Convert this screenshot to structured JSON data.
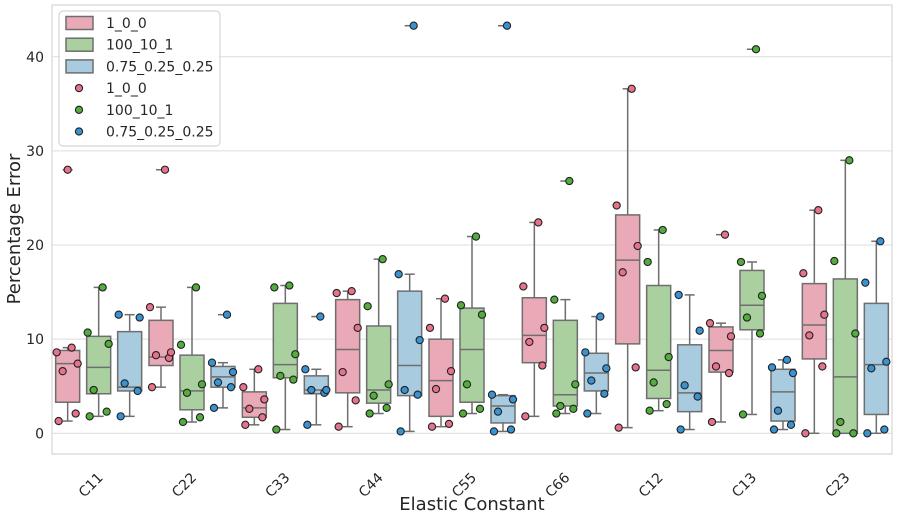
{
  "chart_data": {
    "type": "box",
    "title": "",
    "xlabel": "Elastic Constant",
    "ylabel": "Percentage Error",
    "ylim": [
      -2.2,
      45.5
    ],
    "yticks": [
      0,
      10,
      20,
      30,
      40
    ],
    "grid": true,
    "legend_position": "top-left",
    "categories": [
      "C11",
      "C22",
      "C33",
      "C44",
      "C55",
      "C66",
      "C12",
      "C13",
      "C23"
    ],
    "colors": {
      "1_0_0": {
        "box": "#eaa9b6",
        "point": "#e7728c"
      },
      "100_10_1": {
        "box": "#aad0a0",
        "point": "#52ad3c"
      },
      "0.75_0.25_0.25": {
        "box": "#a8cbe0",
        "point": "#3893d3"
      }
    },
    "legend": {
      "box_entries": [
        "1_0_0",
        "100_10_1",
        "0.75_0.25_0.25"
      ],
      "point_entries": [
        "1_0_0",
        "100_10_1",
        "0.75_0.25_0.25"
      ]
    },
    "series": [
      {
        "name": "1_0_0",
        "boxes": [
          {
            "whislo": 1.3,
            "q1": 3.3,
            "med": 7.4,
            "q3": 8.8,
            "whishi": 9.1,
            "fliers": [
              28.0
            ],
            "points": [
              1.3,
              2.1,
              6.6,
              7.4,
              8.6,
              9.1,
              28.0
            ]
          },
          {
            "whislo": 4.9,
            "q1": 7.2,
            "med": 8.1,
            "q3": 12.0,
            "whishi": 13.4,
            "fliers": [
              28.0
            ],
            "points": [
              4.9,
              8.0,
              8.3,
              8.6,
              13.4,
              28.0
            ]
          },
          {
            "whislo": 0.9,
            "q1": 1.7,
            "med": 2.7,
            "q3": 4.4,
            "whishi": 6.8,
            "fliers": [],
            "points": [
              0.9,
              1.7,
              2.6,
              3.6,
              4.9,
              6.8
            ]
          },
          {
            "whislo": 0.7,
            "q1": 4.3,
            "med": 8.9,
            "q3": 14.2,
            "whishi": 15.1,
            "fliers": [],
            "points": [
              0.7,
              3.5,
              6.5,
              11.2,
              14.9,
              15.1
            ]
          },
          {
            "whislo": 0.7,
            "q1": 1.8,
            "med": 5.6,
            "q3": 10.0,
            "whishi": 14.3,
            "fliers": [],
            "points": [
              0.7,
              1.0,
              4.7,
              6.6,
              11.2,
              14.3
            ]
          },
          {
            "whislo": 1.8,
            "q1": 7.5,
            "med": 10.4,
            "q3": 14.4,
            "whishi": 22.4,
            "fliers": [],
            "points": [
              1.8,
              7.2,
              9.7,
              11.2,
              15.6,
              22.4
            ]
          },
          {
            "whislo": 0.6,
            "q1": 9.5,
            "med": 18.4,
            "q3": 23.2,
            "whishi": 36.6,
            "fliers": [],
            "points": [
              0.6,
              7.0,
              17.1,
              19.9,
              24.2,
              36.6
            ]
          },
          {
            "whislo": 1.2,
            "q1": 6.5,
            "med": 8.8,
            "q3": 11.3,
            "whishi": 11.7,
            "fliers": [
              21.1
            ],
            "points": [
              1.2,
              6.4,
              7.1,
              10.3,
              11.7,
              21.1
            ]
          },
          {
            "whislo": 0.0,
            "q1": 7.9,
            "med": 11.5,
            "q3": 15.9,
            "whishi": 23.7,
            "fliers": [],
            "points": [
              0.0,
              7.1,
              10.4,
              12.6,
              17.0,
              23.7
            ]
          }
        ]
      },
      {
        "name": "100_10_1",
        "boxes": [
          {
            "whislo": 1.8,
            "q1": 4.2,
            "med": 7.0,
            "q3": 10.3,
            "whishi": 15.5,
            "fliers": [],
            "points": [
              1.8,
              2.3,
              4.6,
              9.5,
              10.7,
              15.5
            ]
          },
          {
            "whislo": 1.2,
            "q1": 2.5,
            "med": 4.5,
            "q3": 8.3,
            "whishi": 15.5,
            "fliers": [],
            "points": [
              1.2,
              1.7,
              4.3,
              5.2,
              9.4,
              15.5
            ]
          },
          {
            "whislo": 0.4,
            "q1": 5.9,
            "med": 7.3,
            "q3": 13.8,
            "whishi": 15.7,
            "fliers": [],
            "points": [
              0.4,
              5.7,
              6.1,
              8.4,
              15.5,
              15.7
            ]
          },
          {
            "whislo": 2.1,
            "q1": 3.2,
            "med": 4.6,
            "q3": 11.4,
            "whishi": 18.5,
            "fliers": [],
            "points": [
              2.1,
              2.7,
              4.0,
              5.2,
              13.5,
              18.5
            ]
          },
          {
            "whislo": 2.1,
            "q1": 3.3,
            "med": 8.9,
            "q3": 13.3,
            "whishi": 20.9,
            "fliers": [],
            "points": [
              2.1,
              2.6,
              5.2,
              12.6,
              13.6,
              20.9
            ]
          },
          {
            "whislo": 2.1,
            "q1": 2.9,
            "med": 4.1,
            "q3": 12.0,
            "whishi": 14.2,
            "fliers": [
              26.8
            ],
            "points": [
              2.1,
              2.6,
              2.9,
              5.2,
              14.2,
              26.8
            ]
          },
          {
            "whislo": 2.4,
            "q1": 3.7,
            "med": 6.7,
            "q3": 15.7,
            "whishi": 21.6,
            "fliers": [],
            "points": [
              2.4,
              3.1,
              5.4,
              8.1,
              18.2,
              21.6
            ]
          },
          {
            "whislo": 2.0,
            "q1": 11.0,
            "med": 13.6,
            "q3": 17.3,
            "whishi": 18.2,
            "fliers": [
              40.8
            ],
            "points": [
              2.0,
              10.6,
              12.3,
              14.6,
              18.2,
              40.8
            ]
          },
          {
            "whislo": 0.0,
            "q1": 0.0,
            "med": 6.0,
            "q3": 16.4,
            "whishi": 29.0,
            "fliers": [],
            "points": [
              0.0,
              0.0,
              1.2,
              10.6,
              18.3,
              29.0
            ]
          }
        ]
      },
      {
        "name": "0.75_0.25_0.25",
        "boxes": [
          {
            "whislo": 1.8,
            "q1": 4.5,
            "med": 4.9,
            "q3": 10.8,
            "whishi": 12.6,
            "fliers": [],
            "points": [
              1.8,
              4.5,
              5.3,
              12.3,
              12.6
            ]
          },
          {
            "whislo": 2.7,
            "q1": 4.9,
            "med": 6.0,
            "q3": 7.1,
            "whishi": 7.5,
            "fliers": [
              12.6
            ],
            "points": [
              2.7,
              4.9,
              5.4,
              6.5,
              7.5,
              12.6
            ]
          },
          {
            "whislo": 0.9,
            "q1": 4.2,
            "med": 4.6,
            "q3": 6.1,
            "whishi": 6.8,
            "fliers": [
              12.4
            ],
            "points": [
              0.9,
              4.3,
              4.6,
              4.6,
              6.8,
              12.4
            ]
          },
          {
            "whislo": 0.2,
            "q1": 4.0,
            "med": 7.2,
            "q3": 15.1,
            "whishi": 16.9,
            "fliers": [
              43.3
            ],
            "points": [
              0.2,
              4.1,
              4.6,
              9.9,
              16.9,
              43.3
            ]
          },
          {
            "whislo": 0.2,
            "q1": 1.1,
            "med": 2.9,
            "q3": 4.0,
            "whishi": 4.1,
            "fliers": [
              43.3
            ],
            "points": [
              0.2,
              0.4,
              2.3,
              3.6,
              4.1,
              43.3
            ]
          },
          {
            "whislo": 2.1,
            "q1": 4.5,
            "med": 6.4,
            "q3": 8.5,
            "whishi": 12.4,
            "fliers": [],
            "points": [
              2.1,
              4.2,
              5.6,
              6.9,
              8.6,
              12.4
            ]
          },
          {
            "whislo": 0.4,
            "q1": 2.3,
            "med": 4.3,
            "q3": 9.4,
            "whishi": 14.7,
            "fliers": [],
            "points": [
              0.4,
              3.9,
              5.1,
              10.9,
              14.7
            ]
          },
          {
            "whislo": 0.4,
            "q1": 1.3,
            "med": 4.4,
            "q3": 6.8,
            "whishi": 7.8,
            "fliers": [],
            "points": [
              0.4,
              0.9,
              2.4,
              6.4,
              7.0,
              7.8
            ]
          },
          {
            "whislo": 0.0,
            "q1": 2.0,
            "med": 7.3,
            "q3": 13.8,
            "whishi": 20.4,
            "fliers": [],
            "points": [
              0.0,
              0.4,
              6.9,
              7.6,
              16.0,
              20.4
            ]
          }
        ]
      }
    ]
  }
}
